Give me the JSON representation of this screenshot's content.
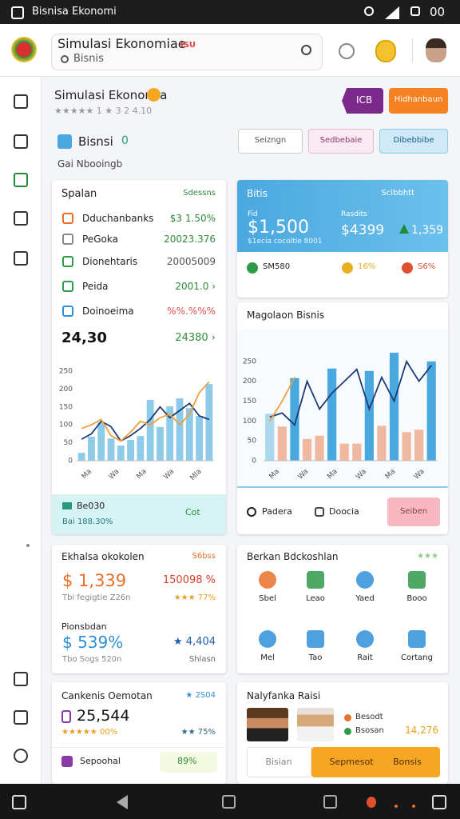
{
  "status_bar": {
    "app_name": "Bisnisa Ekonomi",
    "time": "00"
  },
  "header": {
    "title": "Simulasi Ekonomiae",
    "badge": "ISU",
    "subtitle": "Bisnis"
  },
  "page": {
    "title": "Simulasi Ekonomia",
    "rating": "★★★★★ 1 ★ 3 2 4.10",
    "buttons": [
      "ICB",
      "Hidhanbaun"
    ],
    "tab": "Bisnsi",
    "tab_count": "0",
    "filters": [
      "Seizngn",
      "Sedbebaie",
      "Dibebbibe"
    ],
    "caption": "Gai Nbooingb"
  },
  "summary_card": {
    "title": "Spalan",
    "action": "Sdessns",
    "rows": [
      {
        "label": "Dduchanbanks",
        "value": "$3 1.50%"
      },
      {
        "label": "PeGoka",
        "value": "20023.376"
      },
      {
        "label": "Dionehtaris",
        "value": "20005009"
      },
      {
        "label": "Peida",
        "value": "2001.0 ›"
      },
      {
        "label": "Doinoeima",
        "value": "%%.%%%"
      }
    ],
    "total": "24,30",
    "total_value": "24380 ›",
    "chart": {
      "ylim": [
        0,
        250
      ],
      "yticks": [
        0,
        50,
        100,
        150,
        200,
        250
      ],
      "xlabels": [
        "Ma",
        "Wa",
        "Ma",
        "Wa",
        "Mla"
      ],
      "bars": {
        "color": "#8ecbe8",
        "values": [
          22,
          67,
          107,
          62,
          42,
          58,
          69,
          170,
          94,
          152,
          174,
          147,
          125,
          214
        ]
      },
      "lines": [
        {
          "color": "#1f3b73",
          "values": [
            60,
            75,
            110,
            95,
            55,
            70,
            90,
            115,
            150,
            120,
            140,
            160,
            125,
            115
          ]
        },
        {
          "color": "#f0a040",
          "values": [
            90,
            100,
            115,
            70,
            55,
            80,
            110,
            100,
            120,
            130,
            100,
            130,
            190,
            220
          ]
        }
      ]
    },
    "footer": {
      "title": "Be030",
      "subtitle": "Bai 188.30%",
      "action": "Cot"
    }
  },
  "balance_card": {
    "title": "Bitis",
    "action": "Scibbhtt",
    "main_label": "Fid",
    "main_value": "$1,500",
    "main_note": "$1ecia cocoltle 8001",
    "second_label": "Rasdits",
    "second_value": "$4399",
    "third_value": "1,359",
    "stats": [
      "SM580",
      "16%",
      "S6%"
    ]
  },
  "trend_card": {
    "title": "Magolaon Bisnis",
    "chart": {
      "ylim": [
        0,
        280
      ],
      "yticks": [
        0,
        50,
        100,
        150,
        200,
        250
      ],
      "xlabels": [
        "Ma",
        "Wa",
        "Ma",
        "Wa",
        "Ma",
        "Wa"
      ],
      "bars": {
        "colors": [
          "#a9d8ef",
          "#f0b8a0",
          "#4aa8e0",
          "#f0b8a0",
          "#f0b8a0",
          "#4aa8e0",
          "#f0b8a0",
          "#f0b8a0",
          "#4aa8e0",
          "#f0b8a0",
          "#4aa8e0",
          "#f0b8a0",
          "#f0b8a0",
          "#4aa8e0"
        ],
        "values": [
          118,
          86,
          208,
          55,
          63,
          232,
          43,
          43,
          226,
          88,
          272,
          72,
          78,
          250
        ]
      },
      "lines": [
        {
          "color": "#1f3b73",
          "values": [
            110,
            120,
            90,
            200,
            130,
            170,
            200,
            230,
            130,
            210,
            150,
            250,
            200,
            240
          ]
        },
        {
          "color": "#f0a040",
          "values": [
            100,
            150,
            210,
            null,
            null,
            null,
            null,
            null,
            null,
            null,
            null,
            null,
            null,
            null
          ]
        }
      ]
    },
    "footer": [
      "Padera",
      "Doocia",
      "Seiben"
    ]
  },
  "economy_card": {
    "title": "Ekhalsa okokolen",
    "action": "S6bss",
    "value": "$ 1,339",
    "change": "150098 %",
    "note": "Tbi fegigtie Z26n",
    "rating": "★★★ 77%",
    "subtitle": "Pionsbdan",
    "value2": "$ 539%",
    "change2": "★ 4,404",
    "note2": "Tbo Sogs 520n",
    "action2": "Shlasn"
  },
  "tools_card": {
    "title": "Berkan Bdckoshlan",
    "rating": "★★★",
    "tools": [
      "Sbel",
      "Leao",
      "Yaed",
      "Booo",
      "Mel",
      "Tao",
      "Rait",
      "Cortang"
    ]
  },
  "goals_card": {
    "title": "Cankenis Oemotan",
    "badge": "★ 2S04",
    "value": "25,544",
    "rating": "★★★★★ 00%",
    "rating2": "★★ 75%",
    "item": "Sepoohal",
    "item_value": "89%"
  },
  "team_card": {
    "title": "Nalyfanka Raisi",
    "people": [
      "Besodt",
      "Bsosan"
    ],
    "value": "14,276",
    "buttons": [
      "Bisian",
      "Sepmesot",
      "Bonsis"
    ]
  }
}
